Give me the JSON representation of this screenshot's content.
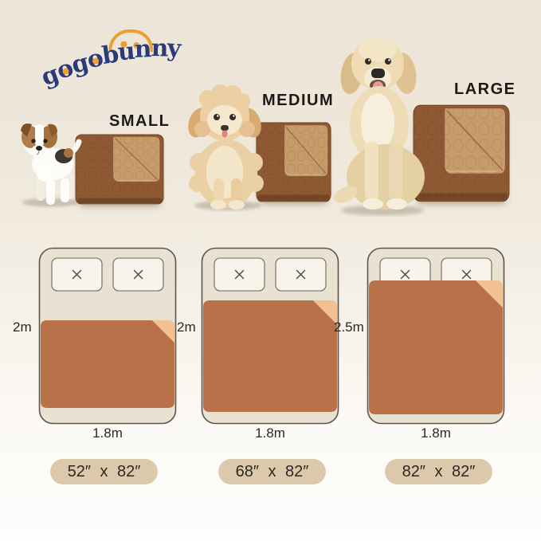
{
  "brand": {
    "name": "gogobunny"
  },
  "sections": [
    {
      "size_label": "SMALL",
      "dimensions_label": "52″ x 82″",
      "dog": "jack-russell-terrier-puppy",
      "bed": {
        "length": "2m",
        "width": "1.8m"
      }
    },
    {
      "size_label": "MEDIUM",
      "dimensions_label": "68″ x 82″",
      "dog": "havanese-puppy",
      "bed": {
        "length": "2m",
        "width": "1.8m"
      }
    },
    {
      "size_label": "LARGE",
      "dimensions_label": "82″ x 82″",
      "dog": "golden-retriever",
      "bed": {
        "length": "2.5m",
        "width": "1.8m"
      }
    }
  ],
  "icons": {
    "pillow_x_icon": "×",
    "bunny_face_icon": "arc with two eye dots"
  },
  "colors": {
    "logo_navy": "#2d3a78",
    "logo_orange": "#eb9f30",
    "blanket_brown": "#8e5933",
    "blanket_fold_tan": "#c79b6a",
    "diagram_blanket_terracotta": "#b9714a",
    "diagram_fold_peach": "#f2c191",
    "bed_fill": "#e9e2d3",
    "pillow_fill": "#f7f4ec",
    "pill_background": "#dcc8ab",
    "background_top": "#ece4d7",
    "background_bottom": "#fdfdfc",
    "label_text": "#1c1a17"
  }
}
